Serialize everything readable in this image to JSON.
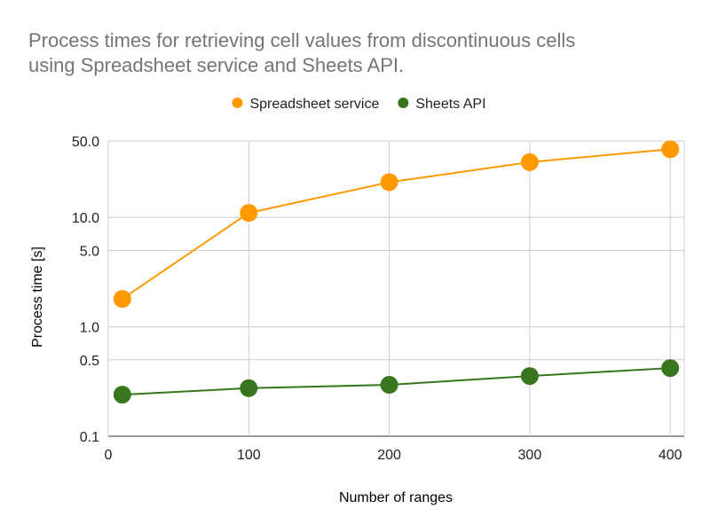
{
  "chart_data": {
    "type": "line",
    "title_lines": [
      "Process times for retrieving cell values from discontinuous cells",
      "using Spreadsheet service and Sheets API."
    ],
    "xlabel": "Number of ranges",
    "ylabel": "Process time [s]",
    "x": [
      10,
      100,
      200,
      300,
      400
    ],
    "xlim": [
      0,
      410
    ],
    "x_ticks": [
      {
        "value": 0,
        "label": "0"
      },
      {
        "value": 100,
        "label": "100"
      },
      {
        "value": 200,
        "label": "200"
      },
      {
        "value": 300,
        "label": "300"
      },
      {
        "value": 400,
        "label": "400"
      }
    ],
    "y_scale": "log",
    "ylim": [
      0.1,
      50
    ],
    "y_ticks": [
      {
        "value": 0.1,
        "label": "0.1"
      },
      {
        "value": 0.5,
        "label": "0.5"
      },
      {
        "value": 1,
        "label": "1.0"
      },
      {
        "value": 5,
        "label": "5.0"
      },
      {
        "value": 10,
        "label": "10.0"
      },
      {
        "value": 50,
        "label": "50.0"
      }
    ],
    "grid": true,
    "legend_position": "top",
    "series": [
      {
        "name": "Spreadsheet service",
        "color": "#ff9900",
        "values": [
          1.8,
          11,
          21,
          32,
          42
        ]
      },
      {
        "name": "Sheets API",
        "color": "#38761d",
        "values": [
          0.24,
          0.275,
          0.295,
          0.355,
          0.42
        ]
      }
    ]
  }
}
